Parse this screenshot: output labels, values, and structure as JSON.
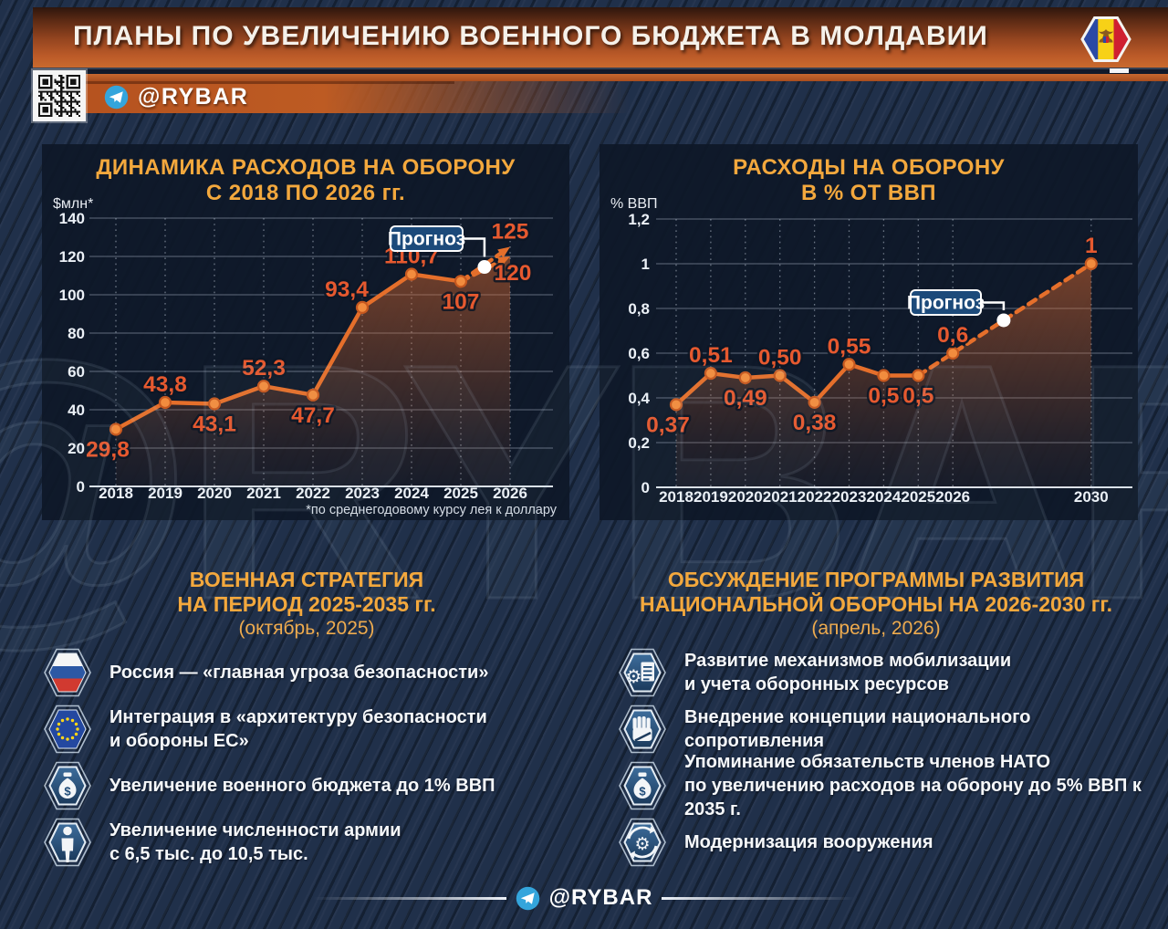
{
  "header": {
    "title": "ПЛАНЫ ПО УВЕЛИЧЕНИЮ ВОЕННОГО БЮДЖЕТА В МОЛДАВИИ",
    "flag_icon": "moldova-flag"
  },
  "channel_bar": {
    "handle": "@RYBAR",
    "qr_icon": "qr-code",
    "telegram_icon": "telegram"
  },
  "watermark": "@RYBAR",
  "colors": {
    "accent": "#f3a83d",
    "line": "#e56f2b",
    "value_label": "#e6592f",
    "panel_bg": "#0e1828",
    "forecast_box": "#1c4a7a",
    "telegram_blue": "#34a5dc",
    "banner_orange": "#c96a2e"
  },
  "chart_data": [
    {
      "type": "line",
      "title_lines": [
        "ДИНАМИКА РАСХОДОВ НА ОБОРОНУ",
        "С 2018 ПО 2026 гг."
      ],
      "ylabel": "$млн*",
      "ylim": [
        0,
        140
      ],
      "grid": true,
      "yticks": [
        {
          "v": 0,
          "label": "0"
        },
        {
          "v": 20,
          "label": "20"
        },
        {
          "v": 40,
          "label": "40"
        },
        {
          "v": 60,
          "label": "60"
        },
        {
          "v": 80,
          "label": "80"
        },
        {
          "v": 100,
          "label": "100"
        },
        {
          "v": 120,
          "label": "120"
        },
        {
          "v": 140,
          "label": "140"
        }
      ],
      "categories": [
        {
          "year": 2018,
          "label": "2018"
        },
        {
          "year": 2019,
          "label": "2019"
        },
        {
          "year": 2020,
          "label": "2020"
        },
        {
          "year": 2021,
          "label": "2021"
        },
        {
          "year": 2022,
          "label": "2022"
        },
        {
          "year": 2023,
          "label": "2023"
        },
        {
          "year": 2024,
          "label": "2024"
        },
        {
          "year": 2025,
          "label": "2025"
        },
        {
          "year": 2026,
          "label": "2026"
        }
      ],
      "series": [
        {
          "name": "Расходы на оборону, $млн",
          "points": [
            {
              "year": 2018,
              "value": 29.8,
              "label": "29,8",
              "side": "below-left"
            },
            {
              "year": 2019,
              "value": 43.8,
              "label": "43,8",
              "side": "above"
            },
            {
              "year": 2020,
              "value": 43.1,
              "label": "43,1",
              "side": "below"
            },
            {
              "year": 2021,
              "value": 52.3,
              "label": "52,3",
              "side": "above"
            },
            {
              "year": 2022,
              "value": 47.7,
              "label": "47,7",
              "side": "below"
            },
            {
              "year": 2023,
              "value": 93.4,
              "label": "93,4",
              "side": "above-left"
            },
            {
              "year": 2024,
              "value": 110.7,
              "label": "110,7",
              "side": "above"
            },
            {
              "year": 2025,
              "value": 107,
              "label": "107",
              "side": "below"
            }
          ]
        }
      ],
      "forecast_branches": [
        {
          "arrow": true,
          "area": true,
          "markers": false,
          "points": [
            {
              "year": 2025,
              "value": 107
            },
            {
              "year": 2026,
              "value": 120,
              "label": "120",
              "side": "tip-below"
            }
          ]
        },
        {
          "arrow": true,
          "area": false,
          "markers": false,
          "points": [
            {
              "year": 2025,
              "value": 107
            },
            {
              "year": 2026,
              "value": 125,
              "label": "125",
              "side": "tip-above"
            }
          ]
        }
      ],
      "forecast_label": "Прогноз",
      "forecast_dot": {
        "year": 2025.48,
        "value": 114.5
      },
      "footnote": "*по среднегодовому курсу лея к доллару"
    },
    {
      "type": "line",
      "title_lines": [
        "РАСХОДЫ НА ОБОРОНУ",
        "В % ОТ ВВП"
      ],
      "ylabel": "% ВВП",
      "ylim": [
        0,
        1.2
      ],
      "grid": true,
      "yticks": [
        {
          "v": 0,
          "label": "0"
        },
        {
          "v": 0.2,
          "label": "0,2"
        },
        {
          "v": 0.4,
          "label": "0,4"
        },
        {
          "v": 0.6,
          "label": "0,6"
        },
        {
          "v": 0.8,
          "label": "0,8"
        },
        {
          "v": 1,
          "label": "1"
        },
        {
          "v": 1.2,
          "label": "1,2"
        }
      ],
      "categories": [
        {
          "year": 2018,
          "label": "2018"
        },
        {
          "year": 2019,
          "label": "2019"
        },
        {
          "year": 2020,
          "label": "2020"
        },
        {
          "year": 2021,
          "label": "2021"
        },
        {
          "year": 2022,
          "label": "2022"
        },
        {
          "year": 2023,
          "label": "2023"
        },
        {
          "year": 2024,
          "label": "2024"
        },
        {
          "year": 2025,
          "label": "2025"
        },
        {
          "year": 2026,
          "label": "2026"
        },
        {
          "year": 2030,
          "label": "2030"
        }
      ],
      "series": [
        {
          "name": "Расходы на оборону, % ВВП",
          "points": [
            {
              "year": 2018,
              "value": 0.37,
              "label": "0,37",
              "side": "below-left"
            },
            {
              "year": 2019,
              "value": 0.51,
              "label": "0,51",
              "side": "above"
            },
            {
              "year": 2020,
              "value": 0.49,
              "label": "0,49",
              "side": "below"
            },
            {
              "year": 2021,
              "value": 0.5,
              "label": "0,50",
              "side": "above"
            },
            {
              "year": 2022,
              "value": 0.38,
              "label": "0,38",
              "side": "below"
            },
            {
              "year": 2023,
              "value": 0.55,
              "label": "0,55",
              "side": "above"
            },
            {
              "year": 2024,
              "value": 0.5,
              "label": "0,5",
              "side": "below"
            },
            {
              "year": 2025,
              "value": 0.5,
              "label": "0,5",
              "side": "below"
            }
          ]
        }
      ],
      "forecast_branches": [
        {
          "arrow": false,
          "area": true,
          "markers": true,
          "points": [
            {
              "year": 2025,
              "value": 0.5
            },
            {
              "year": 2026,
              "value": 0.6,
              "label": "0,6",
              "side": "above"
            },
            {
              "year": 2030,
              "value": 1,
              "label": "1",
              "side": "above"
            }
          ]
        }
      ],
      "forecast_label": "Прогноз",
      "forecast_dot": {
        "year": 2027.47,
        "value": 0.747
      }
    }
  ],
  "sections": [
    {
      "title_lines": [
        "ВОЕННАЯ СТРАТЕГИЯ",
        "НА ПЕРИОД 2025-2035 гг."
      ],
      "subtitle": "(октябрь, 2025)",
      "items": [
        {
          "icon": "russia-flag",
          "lines": [
            "Россия — «главная угроза безопасности»"
          ]
        },
        {
          "icon": "eu-flag",
          "lines": [
            "Интеграция в «архитектуру безопасности",
            "и обороны ЕС»"
          ]
        },
        {
          "icon": "money-bag",
          "lines": [
            "Увеличение военного бюджета до 1% ВВП"
          ]
        },
        {
          "icon": "soldier",
          "lines": [
            "Увеличение численности армии",
            "с 6,5 тыс. до 10,5 тыс."
          ]
        }
      ]
    },
    {
      "title_lines": [
        "ОБСУЖДЕНИЕ ПРОГРАММЫ РАЗВИТИЯ",
        "НАЦИОНАЛЬНОЙ ОБОРОНЫ НА 2026-2030 гг."
      ],
      "subtitle": "(апрель, 2026)",
      "items": [
        {
          "icon": "gear-document",
          "lines": [
            "Развитие механизмов мобилизации",
            "и учета оборонных ресурсов"
          ]
        },
        {
          "icon": "fist",
          "lines": [
            "Внедрение концепции национального сопротивления"
          ]
        },
        {
          "icon": "money-bag",
          "lines": [
            "Упоминание обязательств членов НАТО",
            "по увеличению расходов на оборону до 5% ВВП к 2035 г."
          ]
        },
        {
          "icon": "gear-cycle",
          "lines": [
            "Модернизация вооружения"
          ]
        }
      ]
    }
  ],
  "footer": {
    "handle": "@RYBAR",
    "telegram_icon": "telegram"
  }
}
